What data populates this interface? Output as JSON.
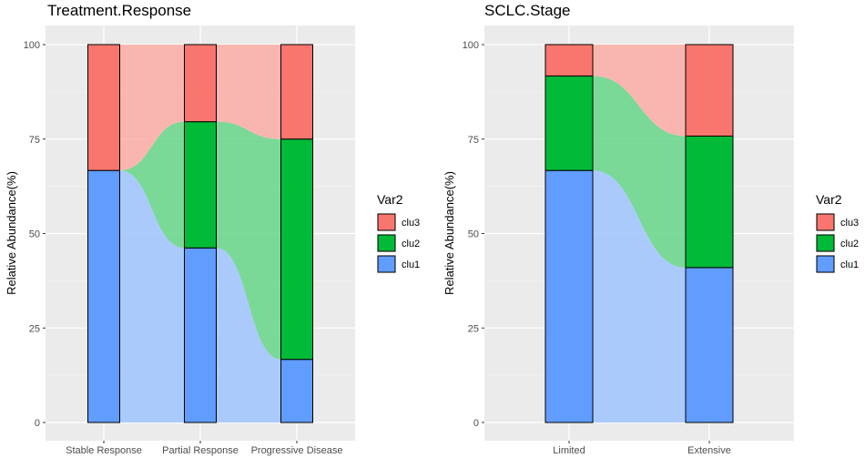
{
  "chart_data": [
    {
      "type": "stacked-bar-alluvial",
      "title": "Treatment.Response",
      "ylabel": "Relative Abundance(%)",
      "xlabel": "",
      "ylim": [
        0,
        100
      ],
      "yticks": [
        0,
        25,
        50,
        75,
        100
      ],
      "categories": [
        "Stable Response",
        "Partial Response",
        "Progressive Disease"
      ],
      "series": [
        {
          "name": "clu1",
          "values": [
            66.7,
            46.2,
            16.7
          ]
        },
        {
          "name": "clu2",
          "values": [
            0,
            33.4,
            58.3
          ]
        },
        {
          "name": "clu3",
          "values": [
            33.3,
            20.4,
            25.0
          ]
        }
      ],
      "grid": true,
      "legend": {
        "title": "Var2",
        "position": "right",
        "entries": [
          "clu3",
          "clu2",
          "clu1"
        ]
      }
    },
    {
      "type": "stacked-bar-alluvial",
      "title": "SCLC.Stage",
      "ylabel": "Relative Abundance(%)",
      "xlabel": "",
      "ylim": [
        0,
        100
      ],
      "yticks": [
        0,
        25,
        50,
        75,
        100
      ],
      "categories": [
        "Limited",
        "Extensive"
      ],
      "series": [
        {
          "name": "clu1",
          "values": [
            66.7,
            41.0
          ]
        },
        {
          "name": "clu2",
          "values": [
            25.0,
            34.8
          ]
        },
        {
          "name": "clu3",
          "values": [
            8.3,
            24.2
          ]
        }
      ],
      "grid": true,
      "legend": {
        "title": "Var2",
        "position": "right",
        "entries": [
          "clu3",
          "clu2",
          "clu1"
        ]
      }
    }
  ],
  "colors": {
    "clu1": "#619CFF",
    "clu2": "#00BA38",
    "clu3": "#F8766D",
    "panel": "#EBEBEB"
  }
}
